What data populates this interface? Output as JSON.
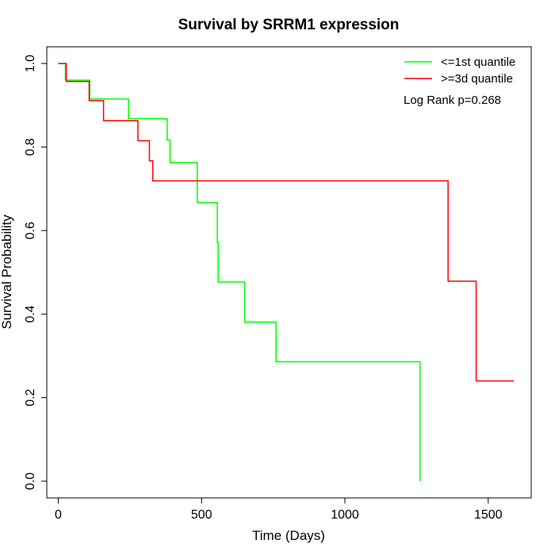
{
  "chart_data": {
    "type": "line",
    "title": "Survival by SRRM1 expression",
    "xlabel": "Time (Days)",
    "ylabel": "Survival Probability",
    "xlim": [
      -40,
      1650
    ],
    "ylim": [
      -0.04,
      1.04
    ],
    "xticks": [
      0,
      500,
      1000,
      1500
    ],
    "xtick_labels": [
      "0",
      "500",
      "1000",
      "1500"
    ],
    "yticks": [
      0.0,
      0.2,
      0.4,
      0.6,
      0.8,
      1.0
    ],
    "ytick_labels": [
      "0.0",
      "0.2",
      "0.4",
      "0.6",
      "0.8",
      "1.0"
    ],
    "grid": false,
    "legend_position": "top-right",
    "annotation": "Log Rank p=0.268",
    "series": [
      {
        "name": "<=1st quantile",
        "color": "#00ff00",
        "step_points": [
          [
            0,
            1.0
          ],
          [
            25,
            0.96
          ],
          [
            110,
            0.915
          ],
          [
            245,
            0.868
          ],
          [
            380,
            0.817
          ],
          [
            390,
            0.763
          ],
          [
            485,
            0.667
          ],
          [
            555,
            0.572
          ],
          [
            558,
            0.477
          ],
          [
            650,
            0.381
          ],
          [
            760,
            0.286
          ],
          [
            1262,
            0.0
          ]
        ]
      },
      {
        "name": ">=3d quantile",
        "color": "#ff0000",
        "step_points": [
          [
            0,
            1.0
          ],
          [
            28,
            0.957
          ],
          [
            108,
            0.911
          ],
          [
            158,
            0.863
          ],
          [
            278,
            0.815
          ],
          [
            318,
            0.767
          ],
          [
            330,
            0.719
          ],
          [
            1360,
            0.479
          ],
          [
            1458,
            0.24
          ],
          [
            1590,
            0.24
          ]
        ]
      }
    ]
  }
}
